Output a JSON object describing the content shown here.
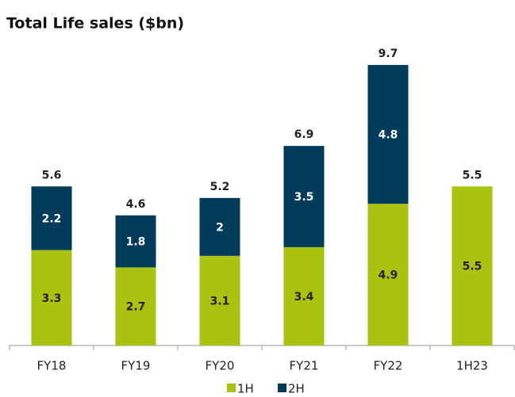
{
  "chart_data": {
    "type": "stacked_bar",
    "title": "Total Life sales ($bn)",
    "categories": [
      "FY18",
      "FY19",
      "FY20",
      "FY21",
      "FY22",
      "1H23"
    ],
    "series": [
      {
        "name": "1H",
        "color": "#a9c30f",
        "values": [
          3.3,
          2.7,
          3.1,
          3.4,
          4.9,
          5.5
        ]
      },
      {
        "name": "2H",
        "color": "#003b5c",
        "values": [
          2.2,
          1.8,
          2.0,
          3.5,
          4.8,
          null
        ]
      }
    ],
    "totals": [
      5.6,
      4.6,
      5.2,
      6.9,
      9.7,
      5.5
    ],
    "ylim": [
      0,
      10
    ]
  }
}
